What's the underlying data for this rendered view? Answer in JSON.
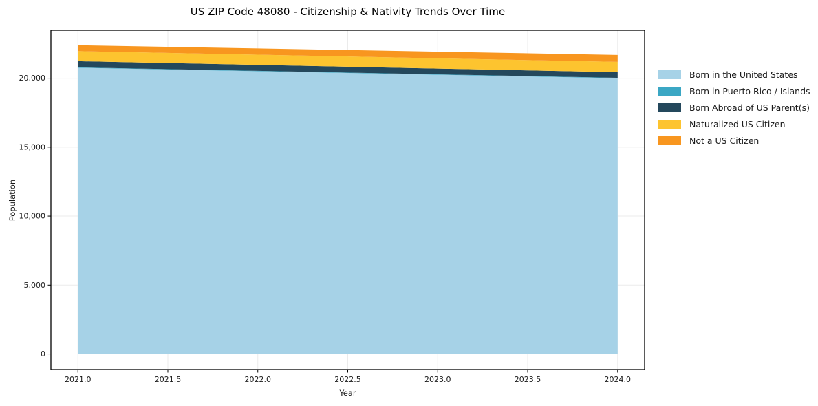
{
  "title": "US ZIP Code 48080 - Citizenship & Nativity Trends Over Time",
  "chart_data": {
    "type": "area",
    "stacked": true,
    "title": "US ZIP Code 48080 - Citizenship & Nativity Trends Over Time",
    "xlabel": "Year",
    "ylabel": "Population",
    "x": [
      2021,
      2022,
      2023,
      2024
    ],
    "series": [
      {
        "name": "Born in the United States",
        "color": "#A6D2E7",
        "values": [
          20750,
          20500,
          20250,
          20000
        ]
      },
      {
        "name": "Born in Puerto Rico / Islands",
        "color": "#3BA7C4",
        "values": [
          30,
          30,
          30,
          30
        ]
      },
      {
        "name": "Born Abroad of US Parent(s)",
        "color": "#24485C",
        "values": [
          450,
          430,
          415,
          400
        ]
      },
      {
        "name": "Naturalized US Citizen",
        "color": "#FDC42F",
        "values": [
          730,
          740,
          745,
          750
        ]
      },
      {
        "name": "Not a US Citizen",
        "color": "#F8961F",
        "values": [
          430,
          455,
          480,
          500
        ]
      }
    ],
    "x_ticks": [
      "2021.0",
      "2021.5",
      "2022.0",
      "2022.5",
      "2023.0",
      "2023.5",
      "2024.0"
    ],
    "x_tick_values": [
      2021,
      2021.5,
      2022,
      2022.5,
      2023,
      2023.5,
      2024
    ],
    "y_ticks": [
      "0",
      "5,000",
      "10,000",
      "15,000",
      "20,000"
    ],
    "y_tick_values": [
      0,
      5000,
      10000,
      15000,
      20000
    ],
    "xlim": [
      2020.85,
      2024.15
    ],
    "ylim": [
      -1120,
      23470
    ],
    "grid": true,
    "grid_color": "#ebebeb",
    "spine_color": "#000000",
    "tick_label_color": "#1a1a1a",
    "legend_position": "right"
  }
}
